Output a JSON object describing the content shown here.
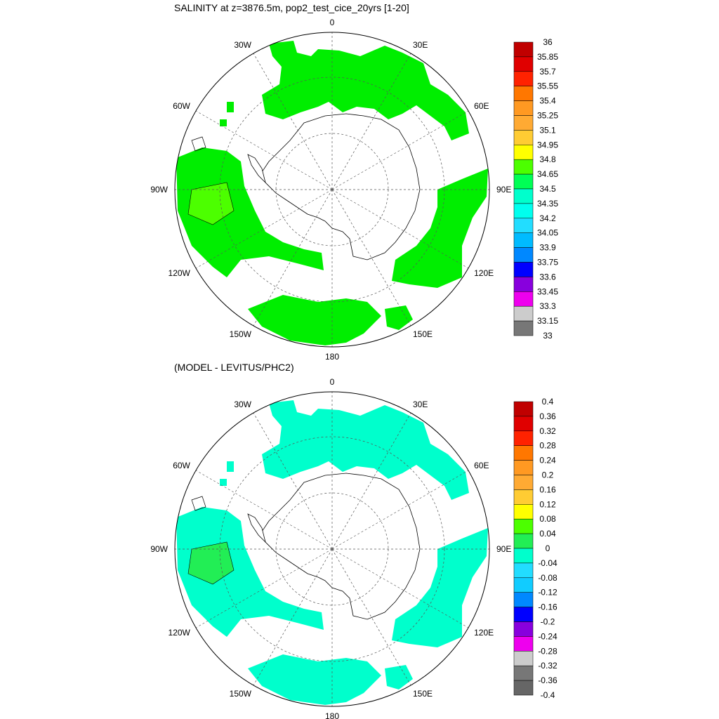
{
  "panels": [
    {
      "title": "SALINITY at z=3876.5m, pop2_test_cice_20yrs [1-20]",
      "fill_colors": [
        "#00ee00",
        "#4cff00"
      ],
      "colorbar": {
        "labels": [
          "36",
          "35.85",
          "35.7",
          "35.55",
          "35.4",
          "35.25",
          "35.1",
          "34.95",
          "34.8",
          "34.65",
          "34.5",
          "34.35",
          "34.2",
          "34.05",
          "33.9",
          "33.75",
          "33.6",
          "33.45",
          "33.3",
          "33.15",
          "33"
        ],
        "colors": [
          "#c00000",
          "#e00000",
          "#ff2200",
          "#ff7700",
          "#ff9922",
          "#ffaa33",
          "#ffcc33",
          "#ffff00",
          "#4cff00",
          "#00ff55",
          "#00ffcc",
          "#00ffee",
          "#22ddff",
          "#00bbff",
          "#0088ff",
          "#0000ff",
          "#8800dd",
          "#ee00ee",
          "#cccccc",
          "#777777"
        ]
      }
    },
    {
      "title": "(MODEL - LEVITUS/PHC2)",
      "fill_colors": [
        "#00ffcc",
        "#22ee55"
      ],
      "colorbar": {
        "labels": [
          "0.4",
          "0.36",
          "0.32",
          "0.28",
          "0.24",
          "0.2",
          "0.16",
          "0.12",
          "0.08",
          "0.04",
          "0",
          "-0.04",
          "-0.08",
          "-0.12",
          "-0.16",
          "-0.2",
          "-0.24",
          "-0.28",
          "-0.32",
          "-0.36",
          "-0.4"
        ],
        "colors": [
          "#c00000",
          "#e00000",
          "#ff2200",
          "#ff7700",
          "#ff9922",
          "#ffaa33",
          "#ffcc33",
          "#ffff00",
          "#4cff00",
          "#22ee55",
          "#00ffcc",
          "#22ddff",
          "#11ccff",
          "#0088ff",
          "#0000ff",
          "#8800dd",
          "#ee00ee",
          "#cccccc",
          "#777777",
          "#666666"
        ]
      }
    }
  ],
  "map_labels": {
    "n0": "0",
    "n30e": "30E",
    "n60e": "60E",
    "n90e": "90E",
    "n120e": "120E",
    "n150e": "150E",
    "n180": "180",
    "n150w": "150W",
    "n120w": "120W",
    "n90w": "90W",
    "n60w": "60W",
    "n30w": "30W"
  }
}
